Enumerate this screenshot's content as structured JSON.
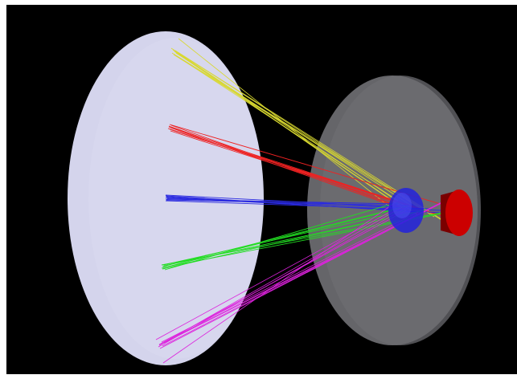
{
  "scene": {
    "background_color": "#000000",
    "frame_color": "#ffffff",
    "components": [
      {
        "id": "image-plane-disc",
        "color": "#d4d4ec"
      },
      {
        "id": "entrance-aperture-disc",
        "color": "#6e6e72"
      },
      {
        "id": "lens-element",
        "color": "#2222dd"
      },
      {
        "id": "source-cylinder",
        "color": "#cc0000"
      }
    ],
    "ray_bundles": [
      {
        "id": "yellow",
        "color": "#d8d830"
      },
      {
        "id": "red",
        "color": "#ee2222"
      },
      {
        "id": "blue",
        "color": "#2a2ae0"
      },
      {
        "id": "green",
        "color": "#22dd22"
      },
      {
        "id": "magenta",
        "color": "#dd22dd"
      }
    ]
  }
}
